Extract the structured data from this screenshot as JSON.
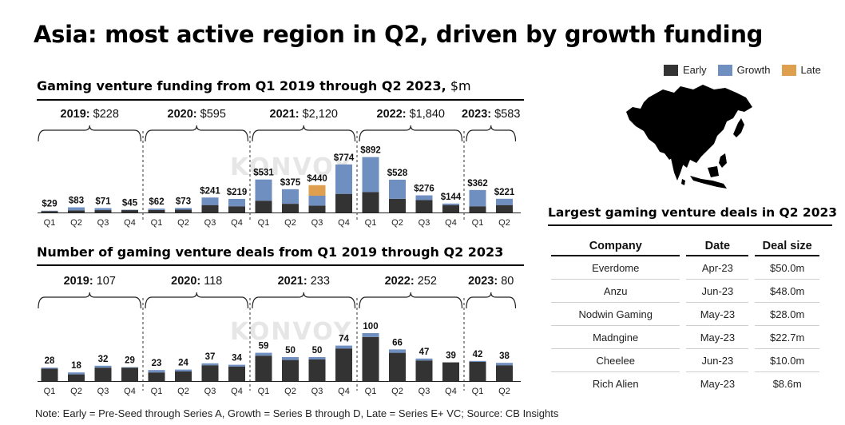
{
  "title": "Asia: most active region in Q2, driven by growth funding",
  "legend": [
    {
      "name": "Early",
      "color": "#333333"
    },
    {
      "name": "Growth",
      "color": "#6f8fc1"
    },
    {
      "name": "Late",
      "color": "#dea04f"
    }
  ],
  "funding_title": {
    "main": "Gaming venture funding from Q1 2019 through Q2 2023,",
    "unit": " $m"
  },
  "deals_title": "Number of gaming venture deals from Q1 2019 through Q2 2023",
  "watermark": "KONVOY",
  "table": {
    "title": "Largest gaming venture deals in Q2 2023",
    "headers": [
      "Company",
      "Date",
      "Deal size"
    ],
    "rows": [
      [
        "Everdome",
        "Apr-23",
        "$50.0m"
      ],
      [
        "Anzu",
        "Jun-23",
        "$48.0m"
      ],
      [
        "Nodwin Gaming",
        "May-23",
        "$28.0m"
      ],
      [
        "Madngine",
        "May-23",
        "$22.7m"
      ],
      [
        "Cheelee",
        "Jun-23",
        "$10.0m"
      ],
      [
        "Rich Alien",
        "May-23",
        "$8.6m"
      ]
    ]
  },
  "footnote": "Note: Early = Pre-Seed through Series A, Growth = Series B through D, Late = Series E+ VC; Source: CB Insights",
  "chart_data": [
    {
      "type": "bar",
      "stacked": true,
      "title": "Gaming venture funding from Q1 2019 through Q2 2023, $m",
      "categories": [
        "Q1",
        "Q2",
        "Q3",
        "Q4",
        "Q1",
        "Q2",
        "Q3",
        "Q4",
        "Q1",
        "Q2",
        "Q3",
        "Q4",
        "Q1",
        "Q2",
        "Q3",
        "Q4",
        "Q1",
        "Q2"
      ],
      "totals_labels": [
        "$29",
        "$83",
        "$71",
        "$45",
        "$62",
        "$73",
        "$241",
        "$219",
        "$531",
        "$375",
        "$440",
        "$774",
        "$892",
        "$528",
        "$276",
        "$144",
        "$362",
        "$221"
      ],
      "totals": [
        29,
        83,
        71,
        45,
        62,
        73,
        241,
        219,
        531,
        375,
        440,
        774,
        892,
        528,
        276,
        144,
        362,
        221
      ],
      "series": [
        {
          "name": "Early",
          "values": [
            22,
            35,
            38,
            38,
            40,
            45,
            120,
            100,
            190,
            140,
            110,
            300,
            330,
            220,
            200,
            120,
            100,
            120
          ]
        },
        {
          "name": "Growth",
          "values": [
            7,
            48,
            33,
            7,
            22,
            28,
            121,
            119,
            341,
            235,
            160,
            474,
            562,
            308,
            76,
            24,
            262,
            101
          ]
        },
        {
          "name": "Late",
          "values": [
            0,
            0,
            0,
            0,
            0,
            0,
            0,
            0,
            0,
            0,
            170,
            0,
            0,
            0,
            0,
            0,
            0,
            0
          ]
        }
      ],
      "years": [
        {
          "year": "2019:",
          "total": "$228"
        },
        {
          "year": "2020:",
          "total": "$595"
        },
        {
          "year": "2021:",
          "total": "$2,120"
        },
        {
          "year": "2022:",
          "total": "$1,840"
        },
        {
          "year": "2023:",
          "total": "$583"
        }
      ],
      "ylim": [
        0,
        900
      ]
    },
    {
      "type": "bar",
      "stacked": true,
      "title": "Number of gaming venture deals from Q1 2019 through Q2 2023",
      "categories": [
        "Q1",
        "Q2",
        "Q3",
        "Q4",
        "Q1",
        "Q2",
        "Q3",
        "Q4",
        "Q1",
        "Q2",
        "Q3",
        "Q4",
        "Q1",
        "Q2",
        "Q3",
        "Q4",
        "Q1",
        "Q2"
      ],
      "totals_labels": [
        "28",
        "18",
        "32",
        "29",
        "23",
        "24",
        "37",
        "34",
        "59",
        "50",
        "50",
        "74",
        "100",
        "66",
        "47",
        "39",
        "42",
        "38"
      ],
      "totals": [
        28,
        18,
        32,
        29,
        23,
        24,
        37,
        34,
        59,
        50,
        50,
        74,
        100,
        66,
        47,
        39,
        42,
        38
      ],
      "series": [
        {
          "name": "Early",
          "values": [
            26,
            14,
            28,
            28,
            18,
            20,
            33,
            30,
            53,
            44,
            45,
            68,
            92,
            59,
            43,
            39,
            40,
            33
          ]
        },
        {
          "name": "Growth",
          "values": [
            2,
            4,
            4,
            1,
            5,
            4,
            4,
            4,
            6,
            6,
            5,
            6,
            8,
            7,
            4,
            0,
            2,
            5
          ]
        },
        {
          "name": "Late",
          "values": [
            0,
            0,
            0,
            0,
            0,
            0,
            0,
            0,
            0,
            0,
            0,
            0,
            0,
            0,
            0,
            0,
            0,
            0
          ]
        }
      ],
      "years": [
        {
          "year": "2019:",
          "total": "107"
        },
        {
          "year": "2020:",
          "total": "118"
        },
        {
          "year": "2021:",
          "total": "233"
        },
        {
          "year": "2022:",
          "total": "252"
        },
        {
          "year": "2023:",
          "total": "80"
        }
      ],
      "ylim": [
        0,
        100
      ]
    }
  ]
}
